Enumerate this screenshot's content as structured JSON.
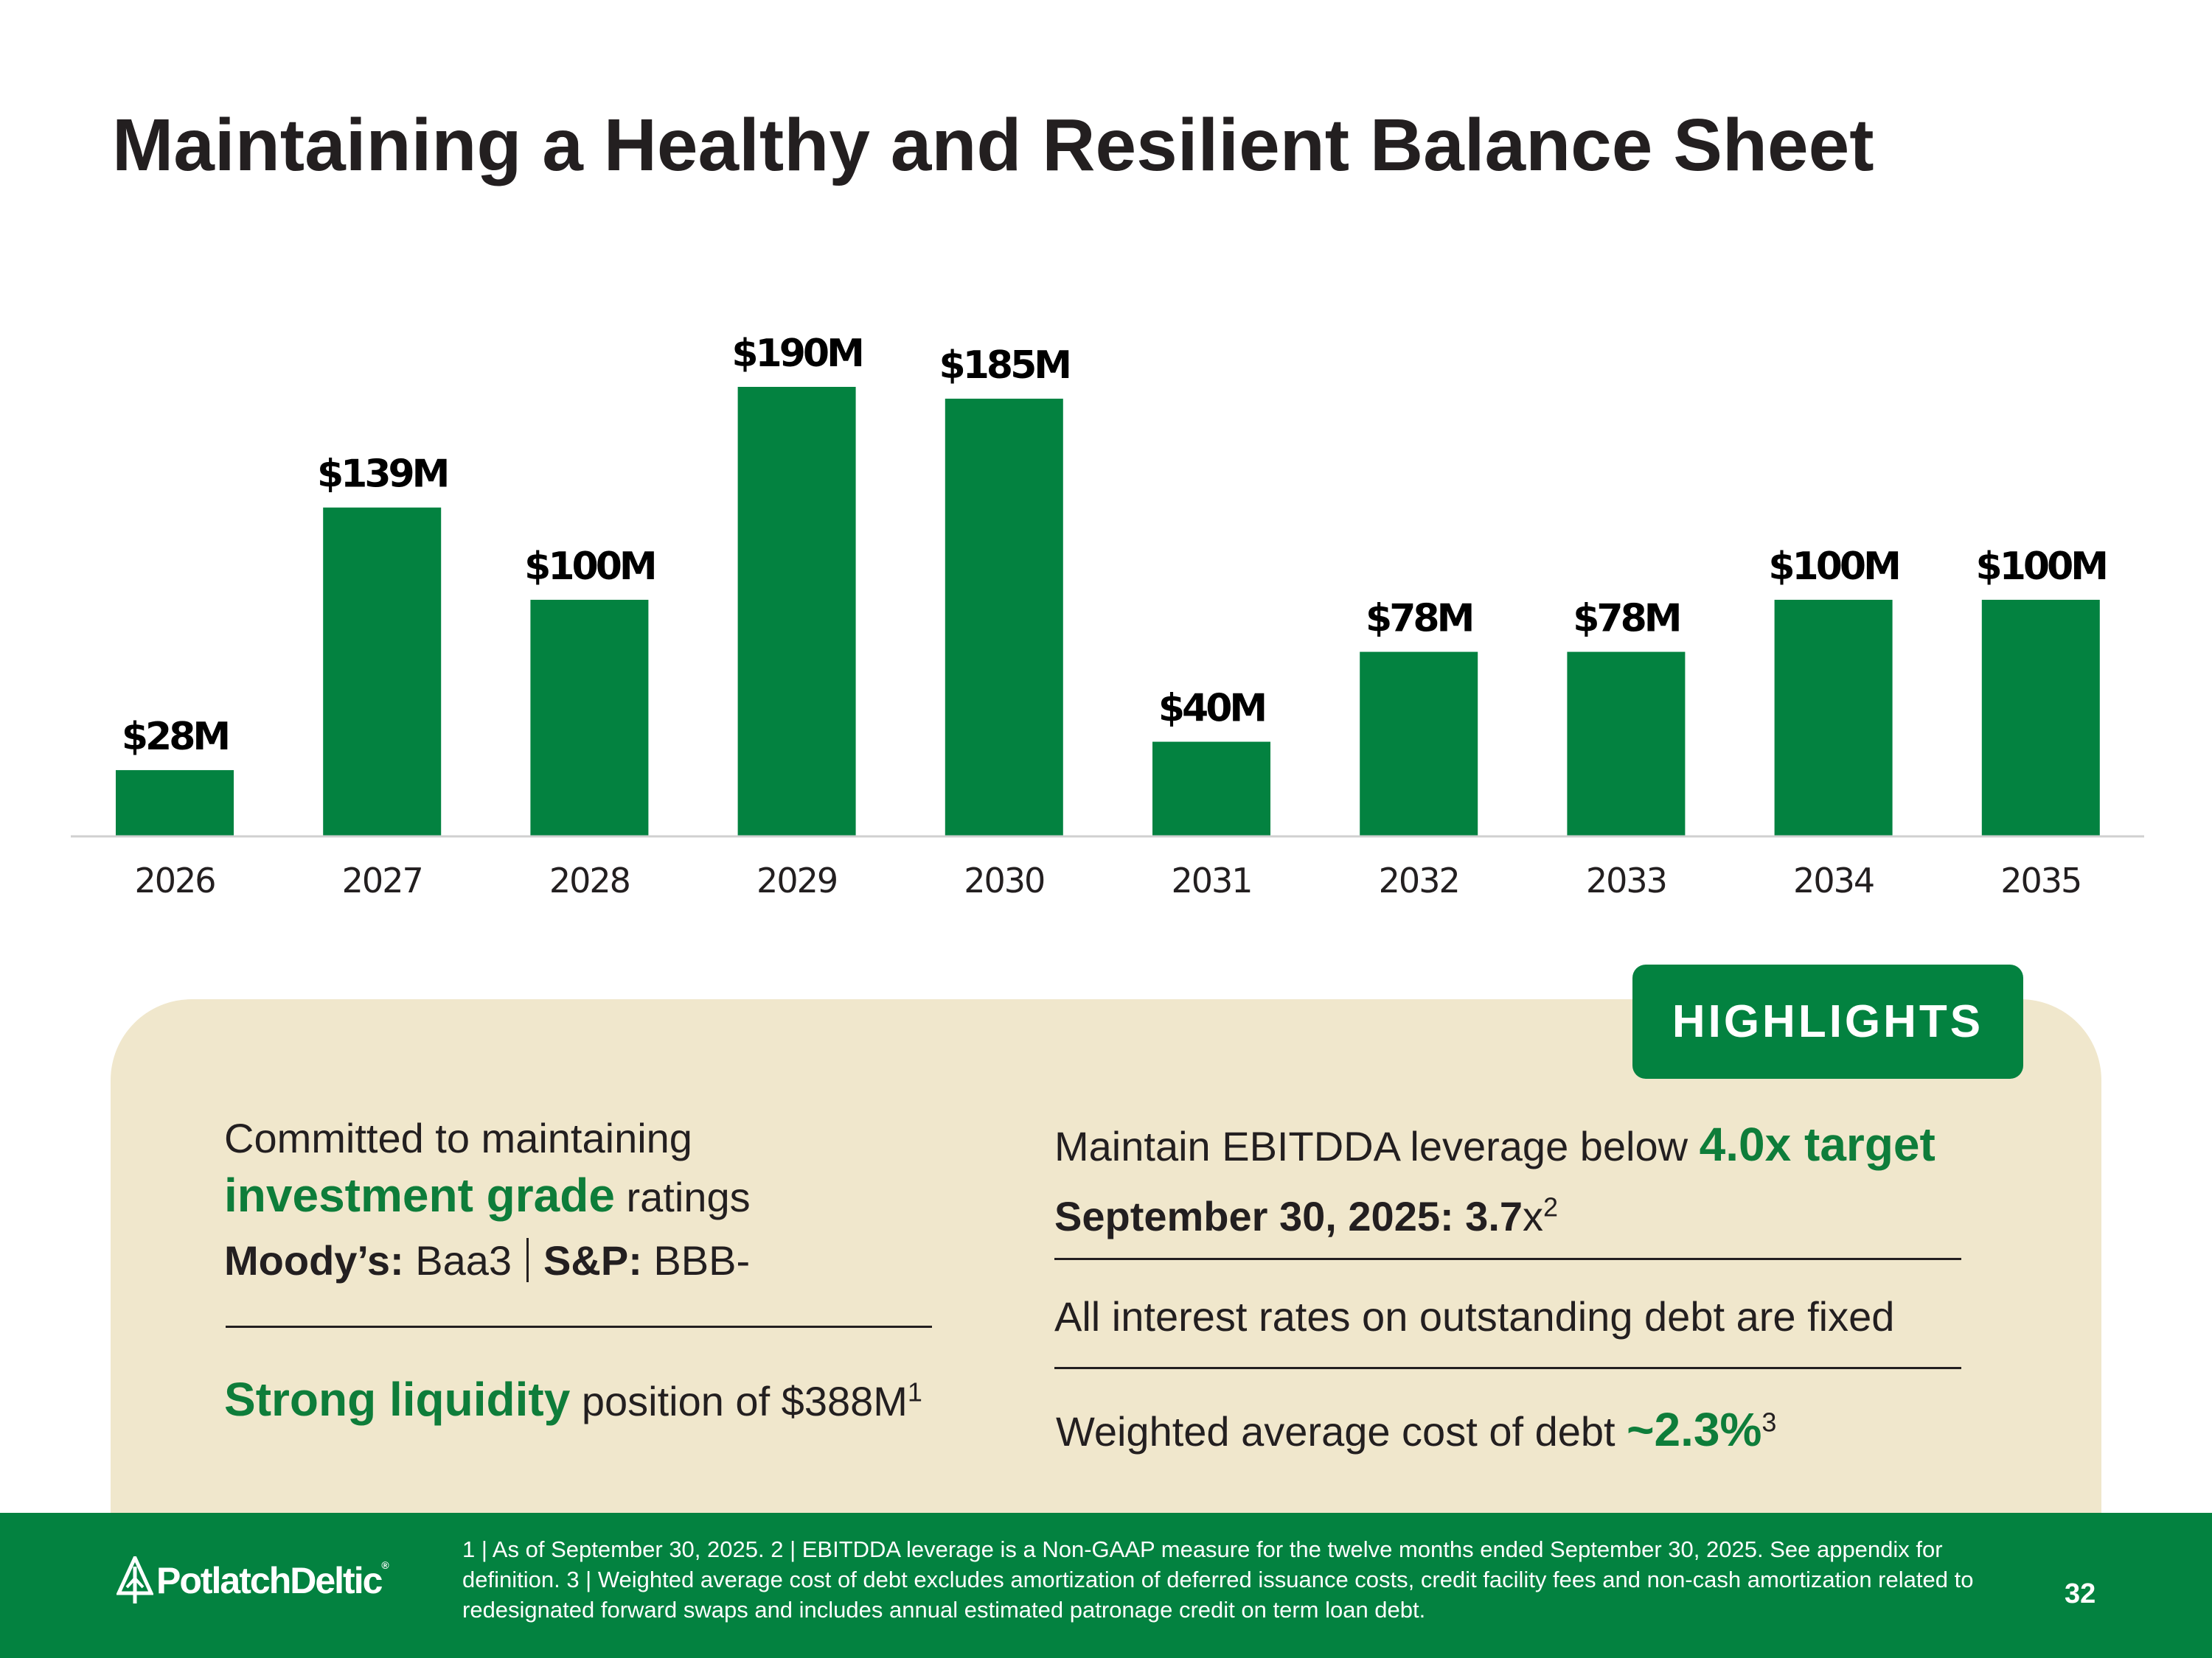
{
  "title": "Maintaining a Healthy and Resilient Balance Sheet",
  "chart_data": {
    "type": "bar",
    "title": "",
    "xlabel": "",
    "ylabel": "",
    "categories": [
      "2026",
      "2027",
      "2028",
      "2029",
      "2030",
      "2031",
      "2032",
      "2033",
      "2034",
      "2035"
    ],
    "values": [
      28,
      139,
      100,
      190,
      185,
      40,
      78,
      78,
      100,
      100
    ],
    "data_labels": [
      "$28M",
      "$139M",
      "$100M",
      "$190M",
      "$185M",
      "$40M",
      "$78M",
      "$78M",
      "$100M",
      "$100M"
    ],
    "units": "$M",
    "ylim": [
      0,
      190
    ],
    "grid": false,
    "bar_color": "#038240"
  },
  "highlights": {
    "badge": "HIGHLIGHTS",
    "left": {
      "line1": "Committed to maintaining",
      "grade_emph": "investment grade",
      "grade_rest": "ratings",
      "moodys_label": "Moody’s:",
      "moodys_value": "Baa3",
      "sp_label": "S&P:",
      "sp_value": "BBB-",
      "liquidity_emph": "Strong liquidity",
      "liquidity_rest": "position of $388M",
      "liquidity_note": "1"
    },
    "right": {
      "leverage_text": "Maintain EBITDDA leverage below",
      "leverage_emph": "4.0x target",
      "sept_label": "September 30, 2025: 3.7",
      "sept_suffix": "x",
      "sept_note": "2",
      "fixed_rates": "All interest rates on outstanding debt are fixed",
      "cost_text": "Weighted average cost of debt",
      "cost_emph": "~2.3%",
      "cost_note": "3"
    }
  },
  "footer": {
    "logo_text": "PotlatchDeltic",
    "logo_mark": "®",
    "footnote": "1 | As of September 30, 2025.  2 | EBITDDA leverage is a Non-GAAP measure for the twelve months ended September 30, 2025. See appendix for definition.  3 | Weighted average cost of debt excludes amortization of deferred issuance costs, credit facility fees and non-cash amortization related to redesignated forward swaps and includes annual estimated patronage credit on term loan debt.",
    "page_number": "32"
  },
  "colors": {
    "brand_green": "#038240",
    "accent_text_green": "#0e7d3a",
    "panel_bg": "#f0e7cc",
    "title_text": "#231f20"
  },
  "icons": {
    "logo": "tree-icon"
  }
}
